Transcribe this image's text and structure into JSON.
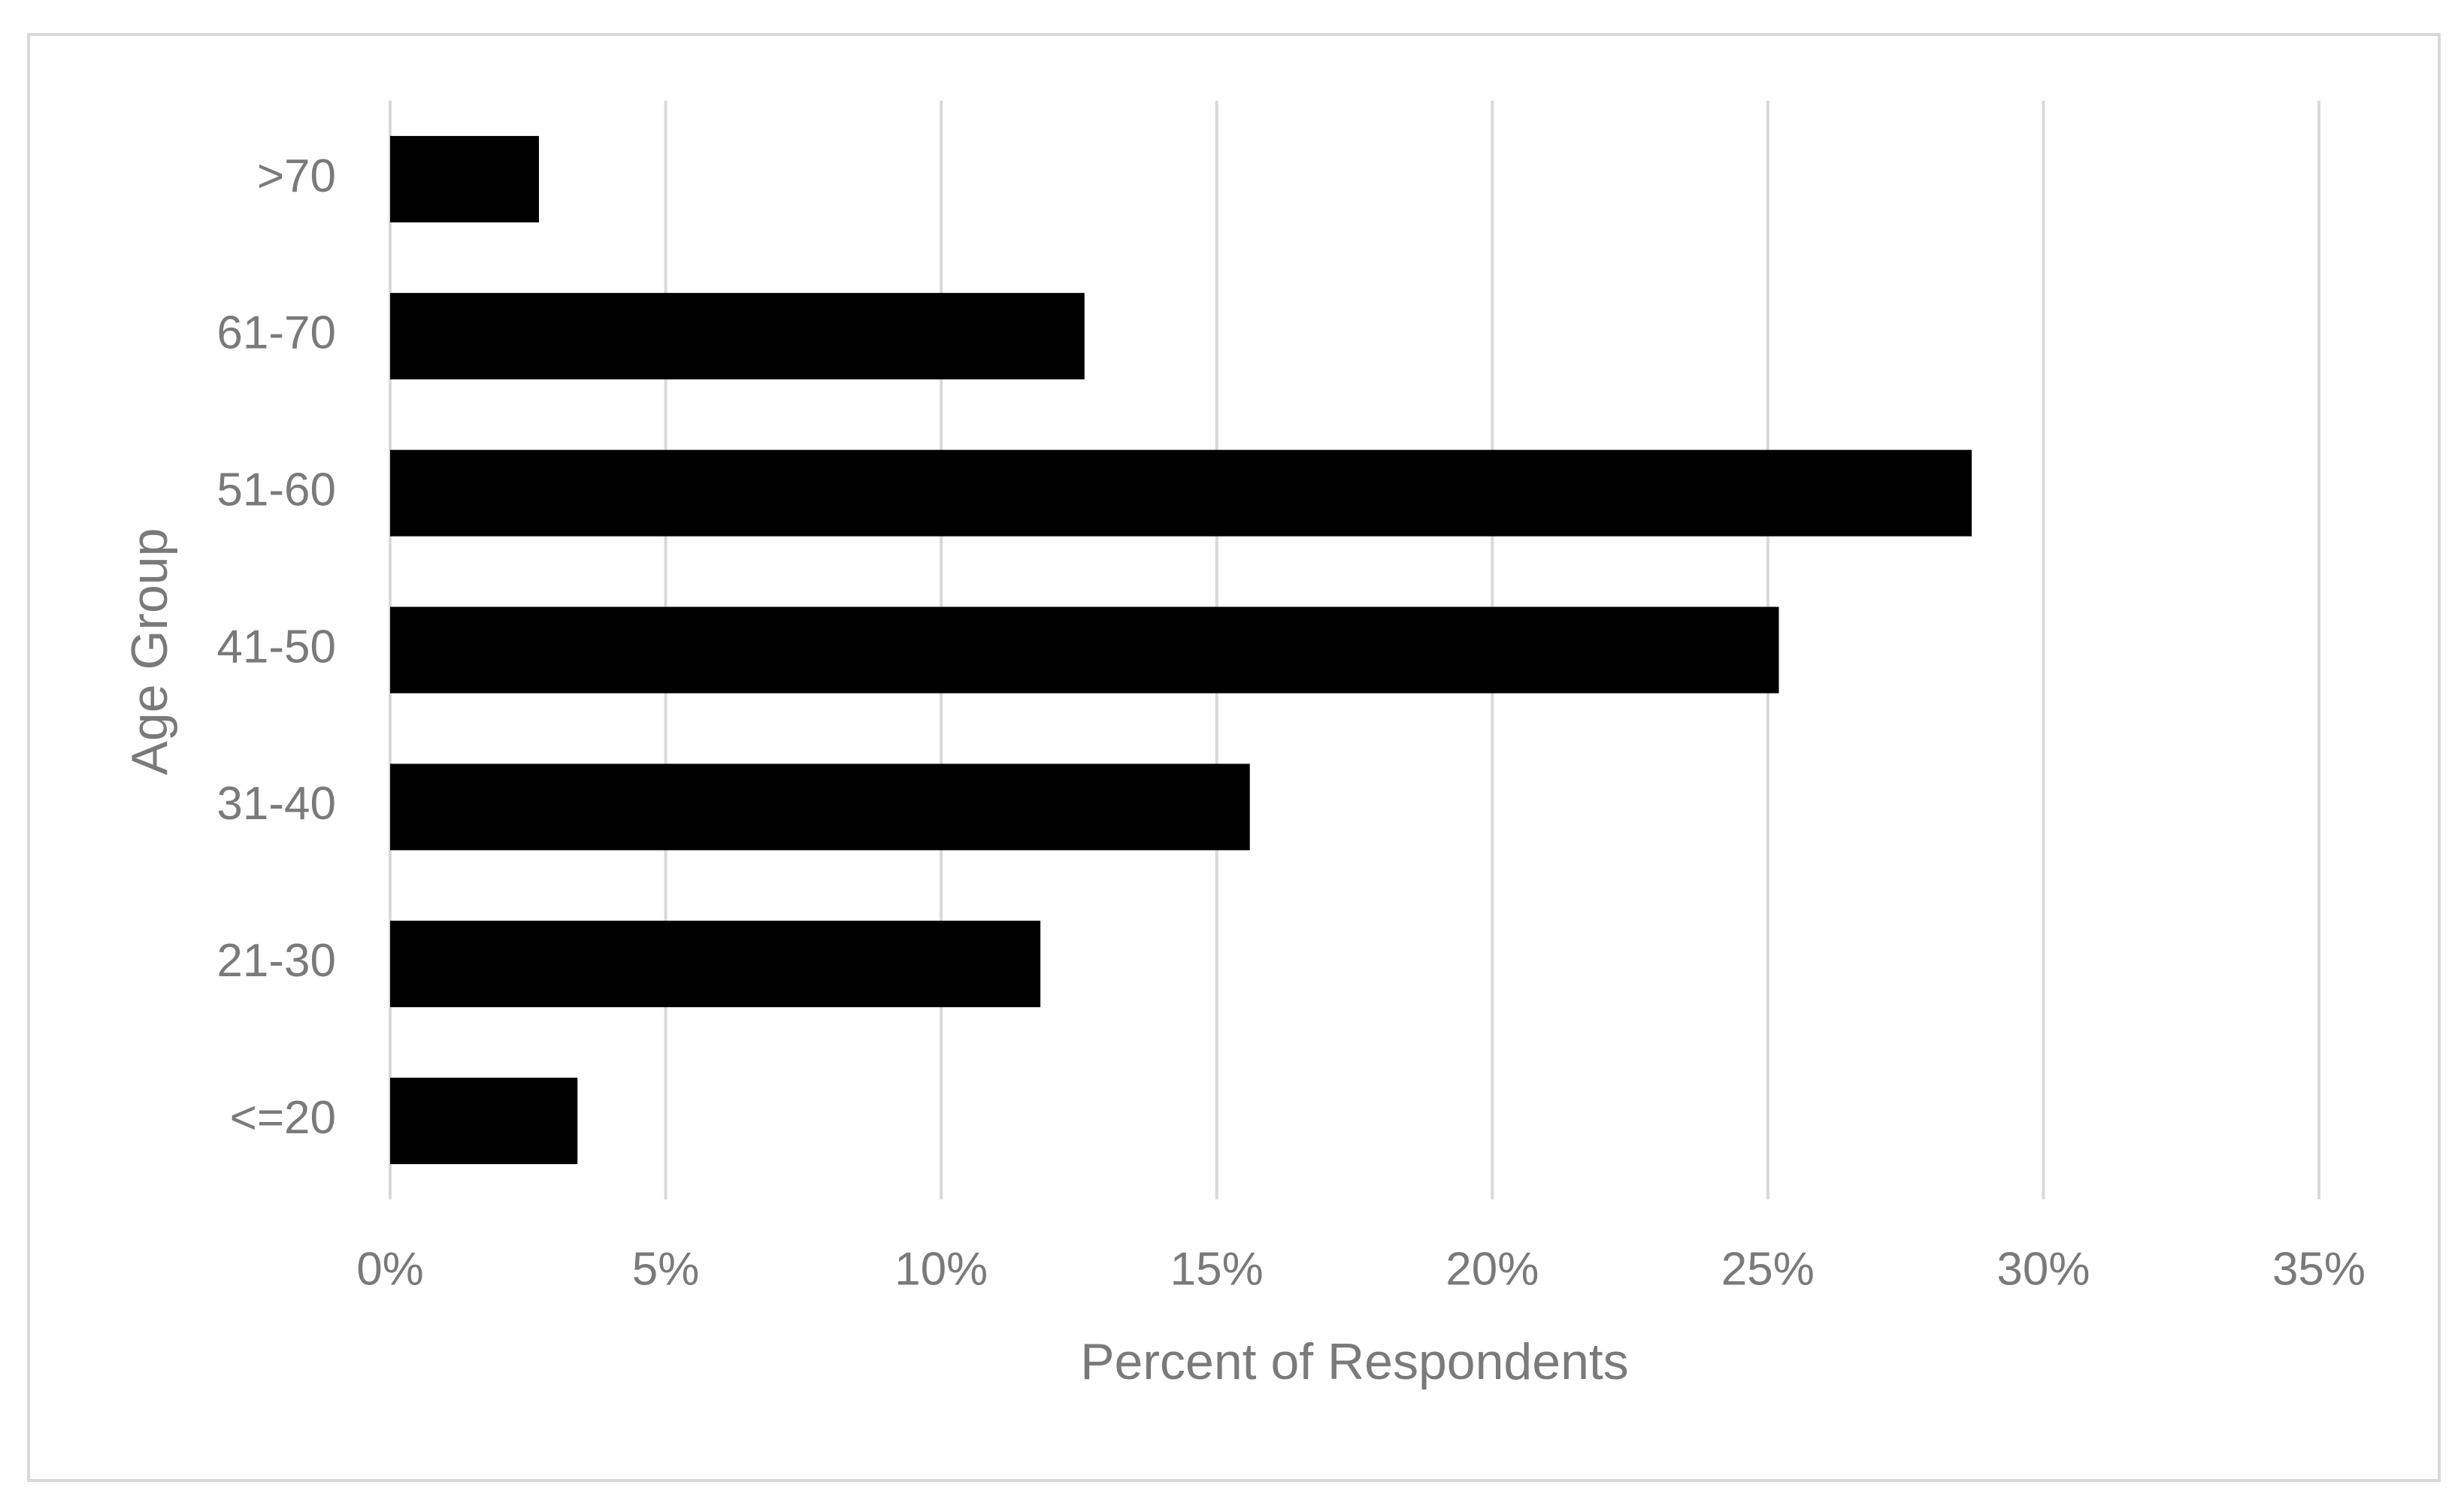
{
  "chart_data": {
    "type": "bar",
    "orientation": "horizontal",
    "xlabel": "Percent of Respondents",
    "ylabel": "Age Group",
    "categories": [
      "<=20",
      "21-30",
      "31-40",
      "41-50",
      "51-60",
      "61-70",
      ">70"
    ],
    "values": [
      3.4,
      11.8,
      15.6,
      25.2,
      28.7,
      12.6,
      2.7
    ],
    "color": "#000000",
    "xlim": [
      0,
      35
    ],
    "xticks": [
      {
        "value": 0,
        "label": "0%"
      },
      {
        "value": 5,
        "label": "5%"
      },
      {
        "value": 10,
        "label": "10%"
      },
      {
        "value": 15,
        "label": "15%"
      },
      {
        "value": 20,
        "label": "20%"
      },
      {
        "value": 25,
        "label": "25%"
      },
      {
        "value": 30,
        "label": "30%"
      },
      {
        "value": 35,
        "label": "35%"
      }
    ],
    "grid": true
  }
}
